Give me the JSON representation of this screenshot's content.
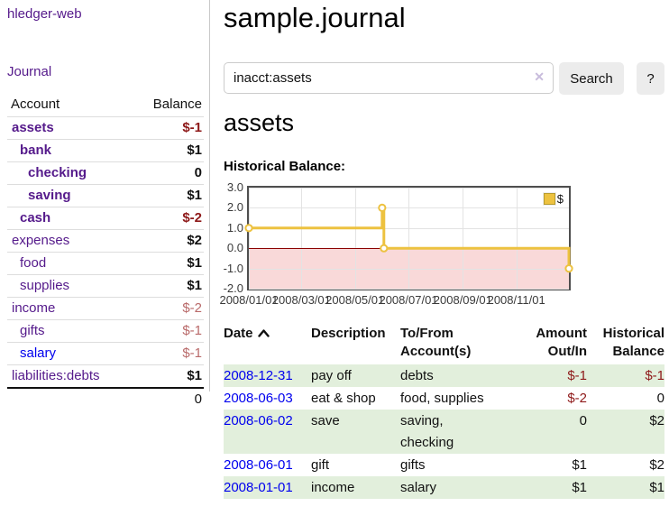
{
  "app": {
    "title": "hledger-web",
    "nav_journal": "Journal"
  },
  "colors": {
    "link_visited_purple": "#551A8B",
    "link_blue": "#0000EE",
    "negative_red": "#8e1919",
    "negative_rose": "#b96a6a",
    "stripe_green": "#e2efdc",
    "series_gold": "#EDC240"
  },
  "sidebar": {
    "header": {
      "account": "Account",
      "balance": "Balance"
    },
    "accounts": [
      {
        "name": "assets",
        "balance": "$-1"
      },
      {
        "name": "bank",
        "balance": "$1"
      },
      {
        "name": "checking",
        "balance": "0"
      },
      {
        "name": "saving",
        "balance": "$1"
      },
      {
        "name": "cash",
        "balance": "$-2"
      },
      {
        "name": "expenses",
        "balance": "$2"
      },
      {
        "name": "food",
        "balance": "$1"
      },
      {
        "name": "supplies",
        "balance": "$1"
      },
      {
        "name": "income",
        "balance": "$-2"
      },
      {
        "name": "gifts",
        "balance": "$-1"
      },
      {
        "name": "salary",
        "balance": "$-1"
      },
      {
        "name": "liabilities:debts",
        "balance": "$1"
      }
    ],
    "total": "0"
  },
  "main": {
    "title": "sample.journal",
    "search": {
      "value": "inacct:assets",
      "clear_label": "✕",
      "button": "Search",
      "help_button": "?"
    },
    "account_heading": "assets",
    "chart_label": "Historical Balance:",
    "register": {
      "headers": {
        "date": "Date",
        "description": "Description",
        "account": "To/From Account(s)",
        "amount": "Amount Out/In",
        "balance": "Historical Balance"
      },
      "rows": [
        {
          "date": "2008-12-31",
          "description": "pay off",
          "accounts": "debts",
          "amount": "$-1",
          "balance": "$-1"
        },
        {
          "date": "2008-06-03",
          "description": "eat & shop",
          "accounts": "food, supplies",
          "amount": "$-2",
          "balance": "0"
        },
        {
          "date": "2008-06-02",
          "description": "save",
          "accounts": "saving, checking",
          "amount": "0",
          "balance": "$2"
        },
        {
          "date": "2008-06-01",
          "description": "gift",
          "accounts": "gifts",
          "amount": "$1",
          "balance": "$2"
        },
        {
          "date": "2008-01-01",
          "description": "income",
          "accounts": "salary",
          "amount": "$1",
          "balance": "$1"
        }
      ]
    }
  },
  "chart_data": {
    "type": "line",
    "title": "Historical Balance:",
    "x_domain": [
      "2008-01-01",
      "2008-12-31"
    ],
    "ylim": [
      -2,
      3
    ],
    "yticks": [
      3,
      2,
      1,
      0,
      -1,
      -2
    ],
    "ytick_labels": [
      "3.0",
      "2.0",
      "1.0",
      "0.0",
      "-1.0",
      "-2.0"
    ],
    "xticks": [
      "2008-01-01",
      "2008-03-01",
      "2008-05-01",
      "2008-07-01",
      "2008-09-01",
      "2008-11-01"
    ],
    "xtick_labels": [
      "2008/01/01",
      "2008/03/01",
      "2008/05/01",
      "2008/07/01",
      "2008/09/01",
      "2008/11/01"
    ],
    "series": [
      {
        "name": "$",
        "color": "#EDC240",
        "step": true,
        "points": [
          [
            "2008-01-01",
            1
          ],
          [
            "2008-06-01",
            2
          ],
          [
            "2008-06-03",
            0
          ],
          [
            "2008-12-31",
            -1
          ]
        ]
      }
    ],
    "grid": true,
    "legend_position": "top-right",
    "negative_region_fill": "#f9d9d9",
    "zero_line_color": "#8b0000"
  }
}
